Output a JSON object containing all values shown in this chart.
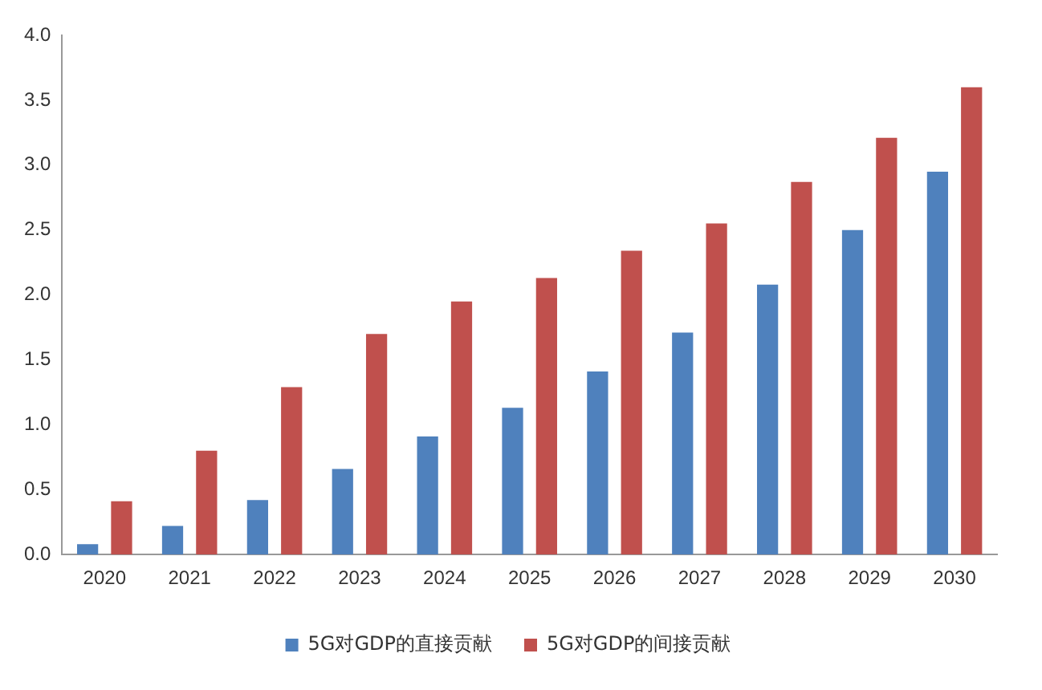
{
  "chart_data": {
    "type": "bar",
    "categories": [
      "2020",
      "2021",
      "2022",
      "2023",
      "2024",
      "2025",
      "2026",
      "2027",
      "2028",
      "2029",
      "2030"
    ],
    "series": [
      {
        "name": "5G对GDP的直接贡献",
        "color": "#4f81bd",
        "values": [
          0.08,
          0.22,
          0.42,
          0.66,
          0.91,
          1.13,
          1.41,
          1.71,
          2.08,
          2.5,
          2.95
        ]
      },
      {
        "name": "5G对GDP的间接贡献",
        "color": "#c0504d",
        "values": [
          0.41,
          0.8,
          1.29,
          1.7,
          1.95,
          2.13,
          2.34,
          2.55,
          2.87,
          3.21,
          3.6
        ]
      }
    ],
    "ylim": [
      0,
      4
    ],
    "yticks": [
      {
        "value": 0,
        "label": "0.0"
      },
      {
        "value": 0.5,
        "label": "0.5"
      },
      {
        "value": 1,
        "label": "1.0"
      },
      {
        "value": 1.5,
        "label": "1.5"
      },
      {
        "value": 2,
        "label": "2.0"
      },
      {
        "value": 2.5,
        "label": "2.5"
      },
      {
        "value": 3,
        "label": "3.0"
      },
      {
        "value": 3.5,
        "label": "3.5"
      },
      {
        "value": 4,
        "label": "4.0"
      }
    ],
    "grid": false,
    "legend": "bottom"
  }
}
